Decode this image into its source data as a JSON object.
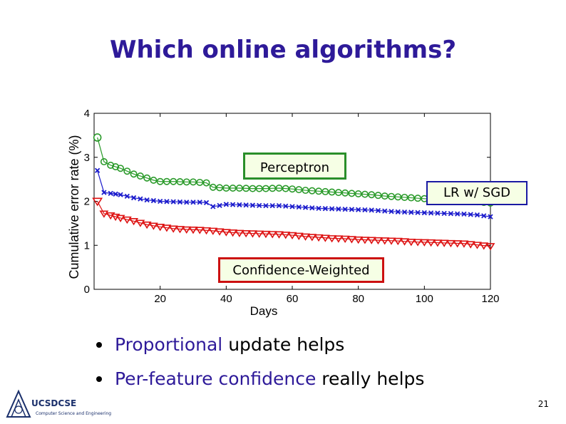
{
  "slide": {
    "title": "Which online algorithms?",
    "page_number": "21",
    "logo_text": "UCSDCSE",
    "logo_subtext": "Computer Science and Engineering"
  },
  "bullets": [
    {
      "highlight": "Proportional",
      "rest": " update helps"
    },
    {
      "highlight": "Per-feature confidence",
      "rest": " really helps"
    }
  ],
  "callouts": {
    "perceptron": "Perceptron",
    "lr_sgd": "LR w/ SGD",
    "confidence_weighted": "Confidence-Weighted"
  },
  "colors": {
    "title": "#2e1a99",
    "perceptron": "#2a9a2a",
    "lr_sgd": "#1a1acc",
    "confidence_weighted": "#dd1111"
  },
  "chart_data": {
    "type": "line",
    "xlabel": "Days",
    "ylabel": "Cumulative error rate (%)",
    "xlim": [
      0,
      120
    ],
    "ylim": [
      0,
      4
    ],
    "xticks": [
      20,
      40,
      60,
      80,
      100,
      120
    ],
    "yticks": [
      0,
      1,
      2,
      3,
      4
    ],
    "grid": false,
    "series": [
      {
        "name": "Perceptron",
        "marker": "circle",
        "color": "#2a9a2a",
        "x": [
          1,
          3,
          5,
          8,
          12,
          16,
          18,
          20,
          24,
          28,
          30,
          32,
          34,
          36,
          40,
          44,
          48,
          52,
          56,
          60,
          64,
          68,
          72,
          76,
          80,
          84,
          88,
          92,
          96,
          100,
          104,
          108,
          112,
          116,
          120
        ],
        "y": [
          3.45,
          2.9,
          2.82,
          2.75,
          2.62,
          2.53,
          2.48,
          2.45,
          2.45,
          2.44,
          2.44,
          2.43,
          2.42,
          2.32,
          2.3,
          2.3,
          2.29,
          2.29,
          2.3,
          2.28,
          2.25,
          2.23,
          2.21,
          2.19,
          2.17,
          2.15,
          2.12,
          2.1,
          2.08,
          2.06,
          2.04,
          2.02,
          2.0,
          1.99,
          1.96
        ]
      },
      {
        "name": "LR w/ SGD",
        "marker": "x",
        "color": "#1a1acc",
        "x": [
          1,
          3,
          5,
          8,
          12,
          16,
          20,
          24,
          28,
          32,
          34,
          36,
          40,
          44,
          48,
          52,
          56,
          60,
          64,
          68,
          72,
          76,
          80,
          84,
          88,
          92,
          96,
          100,
          104,
          108,
          112,
          116,
          120
        ],
        "y": [
          2.7,
          2.2,
          2.18,
          2.15,
          2.08,
          2.03,
          2.0,
          1.99,
          1.98,
          1.98,
          1.97,
          1.88,
          1.93,
          1.92,
          1.91,
          1.9,
          1.9,
          1.88,
          1.86,
          1.84,
          1.83,
          1.82,
          1.81,
          1.8,
          1.78,
          1.76,
          1.75,
          1.74,
          1.73,
          1.72,
          1.71,
          1.69,
          1.65
        ]
      },
      {
        "name": "Confidence-Weighted",
        "marker": "triangle-down",
        "color": "#dd1111",
        "x": [
          1,
          3,
          5,
          8,
          12,
          16,
          20,
          24,
          28,
          32,
          36,
          40,
          44,
          48,
          52,
          56,
          60,
          64,
          68,
          72,
          76,
          80,
          84,
          88,
          92,
          96,
          100,
          104,
          108,
          112,
          116,
          120
        ],
        "y": [
          2.0,
          1.72,
          1.68,
          1.62,
          1.55,
          1.47,
          1.42,
          1.38,
          1.36,
          1.35,
          1.33,
          1.3,
          1.28,
          1.27,
          1.26,
          1.25,
          1.23,
          1.2,
          1.18,
          1.16,
          1.15,
          1.13,
          1.12,
          1.11,
          1.1,
          1.08,
          1.07,
          1.06,
          1.05,
          1.04,
          1.01,
          0.98
        ]
      }
    ]
  }
}
